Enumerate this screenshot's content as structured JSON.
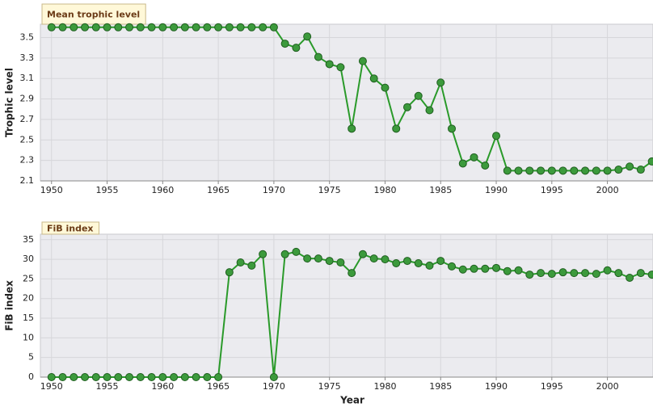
{
  "chart_data": [
    {
      "type": "line",
      "title": "Mean trophic level",
      "y_label": "Trophic level",
      "x": [
        1950,
        1951,
        1952,
        1953,
        1954,
        1955,
        1956,
        1957,
        1958,
        1959,
        1960,
        1961,
        1962,
        1963,
        1964,
        1965,
        1966,
        1967,
        1968,
        1969,
        1970,
        1971,
        1972,
        1973,
        1974,
        1975,
        1976,
        1977,
        1978,
        1979,
        1980,
        1981,
        1982,
        1983,
        1984,
        1985,
        1986,
        1987,
        1988,
        1989,
        1990,
        1991,
        1992,
        1993,
        1994,
        1995,
        1996,
        1997,
        1998,
        1999,
        2000,
        2001,
        2002,
        2003,
        2004
      ],
      "series": [
        {
          "color": "#2a9a2a",
          "values": [
            3.6,
            3.6,
            3.6,
            3.6,
            3.6,
            3.6,
            3.6,
            3.6,
            3.6,
            3.6,
            3.6,
            3.6,
            3.6,
            3.6,
            3.6,
            3.6,
            3.6,
            3.6,
            3.6,
            3.6,
            3.6,
            3.44,
            3.4,
            3.51,
            3.31,
            3.24,
            3.21,
            2.61,
            3.27,
            3.1,
            3.01,
            2.61,
            2.82,
            2.93,
            2.79,
            3.06,
            2.61,
            2.27,
            2.33,
            2.25,
            2.54,
            2.2,
            2.2,
            2.2,
            2.2,
            2.2,
            2.2,
            2.2,
            2.2,
            2.2,
            2.2,
            2.21,
            2.24,
            2.21,
            2.29
          ]
        }
      ],
      "xlim": [
        1949,
        2004.1
      ],
      "xticks": [
        1950,
        1955,
        1960,
        1965,
        1970,
        1975,
        1980,
        1985,
        1990,
        1995,
        2000
      ],
      "ylim": [
        2.1,
        3.63
      ],
      "yticks": [
        2.1,
        2.3,
        2.5,
        2.7,
        2.9,
        3.1,
        3.3,
        3.5
      ],
      "grid": true
    },
    {
      "type": "line",
      "title": "FiB index",
      "y_label": "FiB index",
      "x_label": "Year",
      "x": [
        1950,
        1951,
        1952,
        1953,
        1954,
        1955,
        1956,
        1957,
        1958,
        1959,
        1960,
        1961,
        1962,
        1963,
        1964,
        1965,
        1966,
        1967,
        1968,
        1969,
        1970,
        1971,
        1972,
        1973,
        1974,
        1975,
        1976,
        1977,
        1978,
        1979,
        1980,
        1981,
        1982,
        1983,
        1984,
        1985,
        1986,
        1987,
        1988,
        1989,
        1990,
        1991,
        1992,
        1993,
        1994,
        1995,
        1996,
        1997,
        1998,
        1999,
        2000,
        2001,
        2002,
        2003,
        2004
      ],
      "series": [
        {
          "color": "#2a9a2a",
          "values": [
            0,
            0,
            0,
            0,
            0,
            0,
            0,
            0,
            0,
            0,
            0,
            0,
            0,
            0,
            0,
            0,
            26.7,
            29.2,
            28.4,
            31.3,
            0,
            31.3,
            31.9,
            30.2,
            30.2,
            29.6,
            29.2,
            26.5,
            31.3,
            30.2,
            30.0,
            29.0,
            29.6,
            29.0,
            28.4,
            29.6,
            28.2,
            27.4,
            27.6,
            27.6,
            27.8,
            27.0,
            27.2,
            26.1,
            26.5,
            26.3,
            26.7,
            26.5,
            26.5,
            26.3,
            27.2,
            26.5,
            25.3,
            26.5,
            26.1
          ]
        }
      ],
      "xlim": [
        1949,
        2004.1
      ],
      "xticks": [
        1950,
        1955,
        1960,
        1965,
        1970,
        1975,
        1980,
        1985,
        1990,
        1995,
        2000
      ],
      "ylim": [
        0,
        36.4
      ],
      "yticks": [
        0,
        5,
        10,
        15,
        20,
        25,
        30,
        35
      ],
      "grid": true
    }
  ]
}
